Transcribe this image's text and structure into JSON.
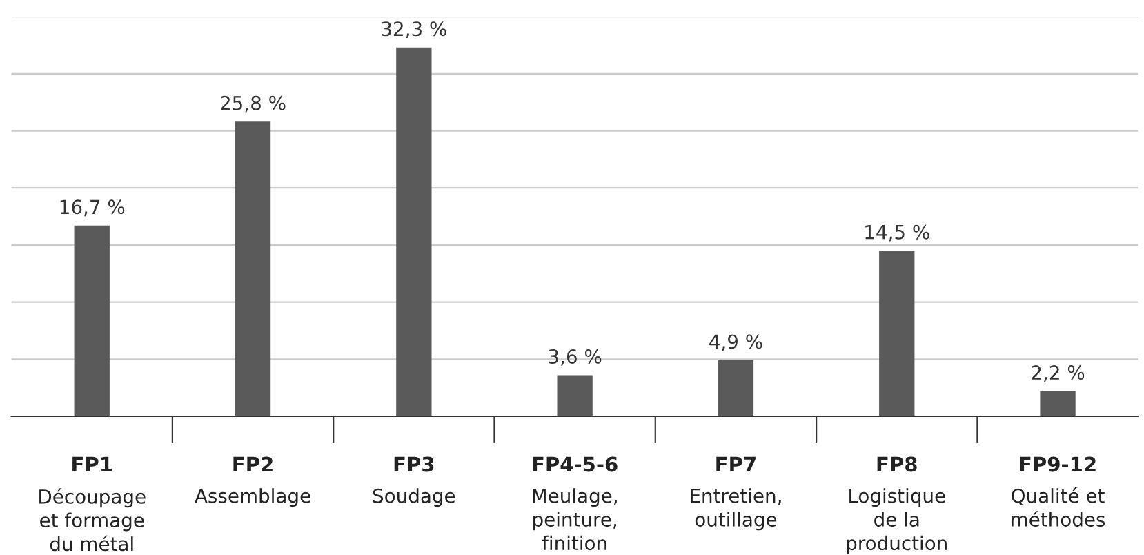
{
  "chart_data": {
    "type": "bar",
    "categories": [
      "FP1\nDécoupage\net formage\ndu métal",
      "FP2\nAssemblage",
      "FP3\nSoudage",
      "FP4-5-6\nMeulage,\npeinture,\nfinition",
      "FP7\nEntretien,\noutillage",
      "FP8\nLogistique\nde la\nproduction",
      "FP9-12\nQualité et\nméthodes"
    ],
    "values": [
      16.7,
      25.8,
      32.3,
      3.6,
      4.9,
      14.5,
      2.2
    ],
    "value_labels": [
      "16,7 %",
      "25,8 %",
      "32,3 %",
      "3,6 %",
      "4,9 %",
      "14,5 %",
      "2,2 %"
    ],
    "color": "#5a5a5a",
    "ylim": [
      0,
      35
    ],
    "yticks": [
      {
        "value": 0,
        "label": null
      },
      {
        "value": 5,
        "label": null
      },
      {
        "value": 10,
        "label": null
      },
      {
        "value": 15,
        "label": null
      },
      {
        "value": 20,
        "label": null
      },
      {
        "value": 25,
        "label": null
      },
      {
        "value": 30,
        "label": null
      },
      {
        "value": 35,
        "label": null
      }
    ],
    "grid": "y",
    "legend": false
  }
}
